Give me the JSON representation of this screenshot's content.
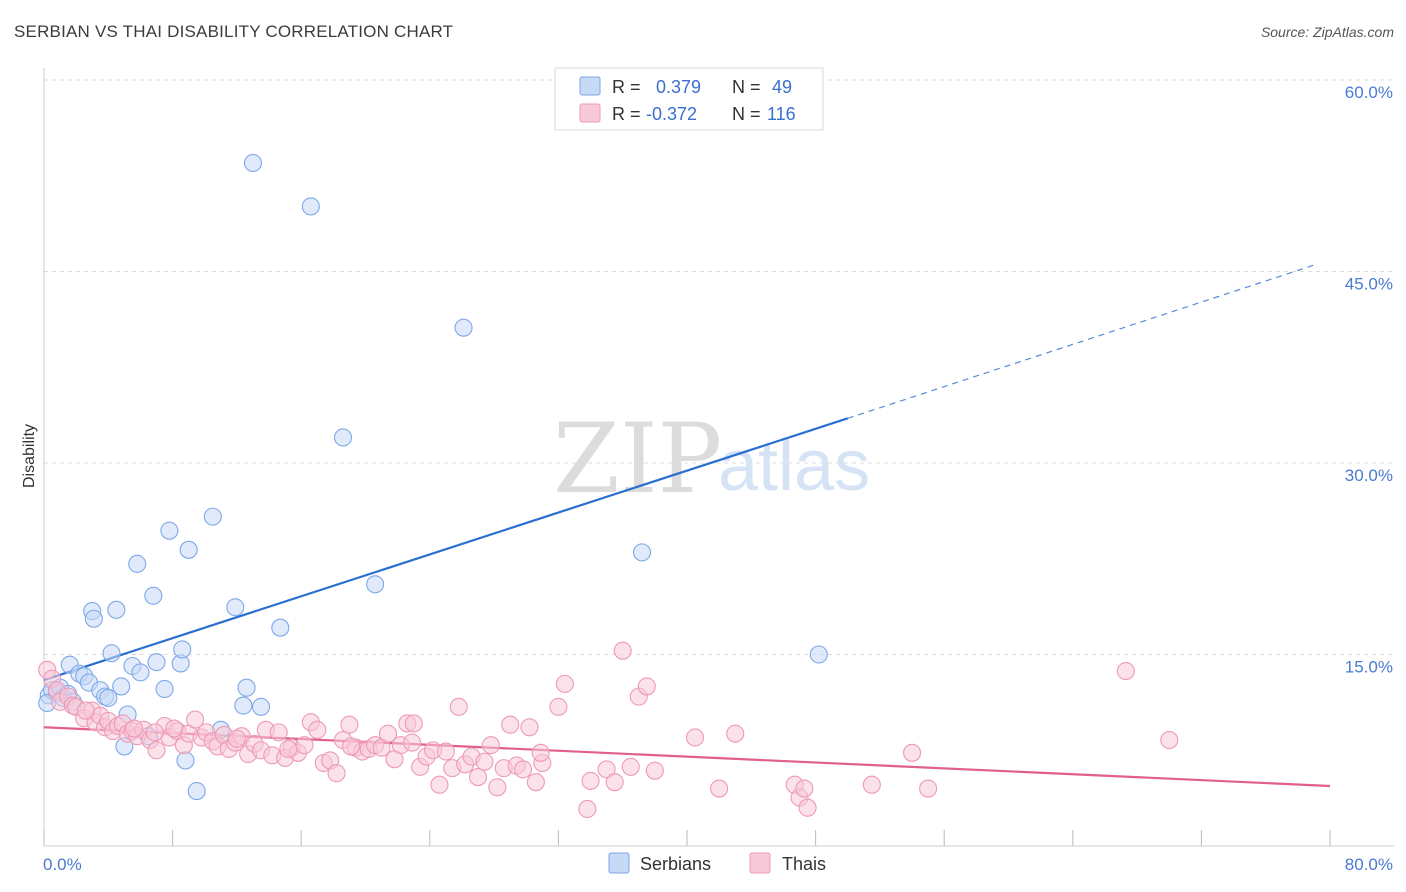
{
  "title": "SERBIAN VS THAI DISABILITY CORRELATION CHART",
  "source": "Source: ZipAtlas.com",
  "watermark": {
    "zip": "ZIP",
    "atlas": "atlas"
  },
  "colors": {
    "serbians": "#7fa8e8",
    "serbians_fill": "#c6d9f5",
    "serbians_line": "#2a6fd0",
    "thais": "#ee9ab5",
    "thais_fill": "#f8c9d8",
    "thais_line": "#e0608a",
    "tick_label": "#4a7bd0",
    "grid": "#dddddd"
  },
  "legend": {
    "position": "top-center",
    "rows": [
      {
        "r_label": "R =",
        "r_value": "0.379",
        "n_label": "N =",
        "n_value": "49"
      },
      {
        "r_label": "R =",
        "r_value": "-0.372",
        "n_label": "N =",
        "n_value": "116"
      }
    ]
  },
  "bottom_legend": [
    "Serbians",
    "Thais"
  ],
  "chart_data": {
    "type": "scatter",
    "xlabel": "",
    "ylabel": "Disability",
    "xlim": [
      0,
      80
    ],
    "ylim": [
      0,
      60
    ],
    "x_tick_labels": {
      "min": "0.0%",
      "max": "80.0%"
    },
    "y_ticks": [
      15,
      30,
      45,
      60
    ],
    "y_tick_labels": [
      "15.0%",
      "30.0%",
      "45.0%",
      "60.0%"
    ],
    "grid": true,
    "series": [
      {
        "name": "Serbians",
        "points": [
          [
            0.3,
            11.8
          ],
          [
            0.5,
            12.2
          ],
          [
            0.8,
            12.0
          ],
          [
            1.0,
            12.4
          ],
          [
            1.2,
            11.6
          ],
          [
            1.5,
            11.9
          ],
          [
            1.6,
            14.2
          ],
          [
            2.2,
            13.5
          ],
          [
            2.5,
            13.3
          ],
          [
            2.8,
            12.8
          ],
          [
            3.0,
            18.4
          ],
          [
            3.1,
            17.8
          ],
          [
            3.5,
            12.2
          ],
          [
            3.8,
            11.7
          ],
          [
            4.0,
            11.6
          ],
          [
            4.2,
            15.1
          ],
          [
            4.5,
            18.5
          ],
          [
            4.8,
            12.5
          ],
          [
            5.0,
            7.8
          ],
          [
            5.2,
            10.3
          ],
          [
            5.5,
            14.1
          ],
          [
            5.8,
            22.1
          ],
          [
            6.0,
            13.6
          ],
          [
            6.5,
            8.6
          ],
          [
            6.8,
            19.6
          ],
          [
            7.0,
            14.4
          ],
          [
            7.5,
            12.3
          ],
          [
            7.8,
            24.7
          ],
          [
            8.5,
            14.3
          ],
          [
            8.6,
            15.4
          ],
          [
            8.8,
            6.7
          ],
          [
            9.0,
            23.2
          ],
          [
            9.5,
            4.3
          ],
          [
            10.5,
            25.8
          ],
          [
            11.0,
            9.1
          ],
          [
            11.9,
            18.7
          ],
          [
            12.4,
            11.0
          ],
          [
            12.6,
            12.4
          ],
          [
            13.0,
            53.5
          ],
          [
            13.5,
            10.9
          ],
          [
            14.7,
            17.1
          ],
          [
            16.6,
            50.1
          ],
          [
            18.6,
            32.0
          ],
          [
            20.6,
            20.5
          ],
          [
            26.1,
            40.6
          ],
          [
            37.2,
            23.0
          ],
          [
            48.2,
            15.0
          ],
          [
            0.2,
            11.2
          ],
          [
            1.8,
            11.3
          ]
        ]
      },
      {
        "name": "Thais",
        "points": [
          [
            0.2,
            13.8
          ],
          [
            0.5,
            13.1
          ],
          [
            0.8,
            12.2
          ],
          [
            1.0,
            11.3
          ],
          [
            1.5,
            11.7
          ],
          [
            1.8,
            11.0
          ],
          [
            2.0,
            10.9
          ],
          [
            2.5,
            10.0
          ],
          [
            3.0,
            10.6
          ],
          [
            3.2,
            9.7
          ],
          [
            3.5,
            10.2
          ],
          [
            3.8,
            9.3
          ],
          [
            4.0,
            9.8
          ],
          [
            4.3,
            9.0
          ],
          [
            4.6,
            9.4
          ],
          [
            4.9,
            9.6
          ],
          [
            5.2,
            8.8
          ],
          [
            5.5,
            9.0
          ],
          [
            5.8,
            8.6
          ],
          [
            6.2,
            9.1
          ],
          [
            6.6,
            8.3
          ],
          [
            7.0,
            7.5
          ],
          [
            7.5,
            9.4
          ],
          [
            7.8,
            8.5
          ],
          [
            8.3,
            9.0
          ],
          [
            8.7,
            7.9
          ],
          [
            9.0,
            8.8
          ],
          [
            9.4,
            9.9
          ],
          [
            9.8,
            8.5
          ],
          [
            10.1,
            8.9
          ],
          [
            10.5,
            8.2
          ],
          [
            10.8,
            7.8
          ],
          [
            11.2,
            8.7
          ],
          [
            11.5,
            7.6
          ],
          [
            11.9,
            8.1
          ],
          [
            12.3,
            8.6
          ],
          [
            12.7,
            7.2
          ],
          [
            13.1,
            8.0
          ],
          [
            13.5,
            7.5
          ],
          [
            13.8,
            9.1
          ],
          [
            14.2,
            7.1
          ],
          [
            14.6,
            8.9
          ],
          [
            15.0,
            6.9
          ],
          [
            15.4,
            7.7
          ],
          [
            15.8,
            7.3
          ],
          [
            16.2,
            7.9
          ],
          [
            16.6,
            9.7
          ],
          [
            17.0,
            9.1
          ],
          [
            17.4,
            6.5
          ],
          [
            17.8,
            6.7
          ],
          [
            18.2,
            5.7
          ],
          [
            18.6,
            8.3
          ],
          [
            19.0,
            9.5
          ],
          [
            19.4,
            7.7
          ],
          [
            19.8,
            7.4
          ],
          [
            20.2,
            7.6
          ],
          [
            20.6,
            7.9
          ],
          [
            21.0,
            7.7
          ],
          [
            21.4,
            8.8
          ],
          [
            21.8,
            6.8
          ],
          [
            22.2,
            7.9
          ],
          [
            22.6,
            9.6
          ],
          [
            23.0,
            9.6
          ],
          [
            23.4,
            6.2
          ],
          [
            23.8,
            7.0
          ],
          [
            24.2,
            7.5
          ],
          [
            24.6,
            4.8
          ],
          [
            25.0,
            7.4
          ],
          [
            25.4,
            6.1
          ],
          [
            25.8,
            10.9
          ],
          [
            26.2,
            6.4
          ],
          [
            26.6,
            7.0
          ],
          [
            27.0,
            5.4
          ],
          [
            27.4,
            6.6
          ],
          [
            27.8,
            7.9
          ],
          [
            28.2,
            4.6
          ],
          [
            28.6,
            6.1
          ],
          [
            29.0,
            9.5
          ],
          [
            29.4,
            6.3
          ],
          [
            29.8,
            6.0
          ],
          [
            30.2,
            9.3
          ],
          [
            30.6,
            5.0
          ],
          [
            31.0,
            6.5
          ],
          [
            32.0,
            10.9
          ],
          [
            32.4,
            12.7
          ],
          [
            34.0,
            5.1
          ],
          [
            35.0,
            6.0
          ],
          [
            35.5,
            5.0
          ],
          [
            36.0,
            15.3
          ],
          [
            36.5,
            6.2
          ],
          [
            37.0,
            11.7
          ],
          [
            37.5,
            12.5
          ],
          [
            38.0,
            5.9
          ],
          [
            40.5,
            8.5
          ],
          [
            42.0,
            4.5
          ],
          [
            43.0,
            8.8
          ],
          [
            46.7,
            4.8
          ],
          [
            47.0,
            3.8
          ],
          [
            47.5,
            3.0
          ],
          [
            47.3,
            4.5
          ],
          [
            51.5,
            4.8
          ],
          [
            54.0,
            7.3
          ],
          [
            55.0,
            4.5
          ],
          [
            67.3,
            13.7
          ],
          [
            70.0,
            8.3
          ],
          [
            33.8,
            2.9
          ],
          [
            6.9,
            8.9
          ],
          [
            12.0,
            8.4
          ],
          [
            2.6,
            10.6
          ],
          [
            5.6,
            9.2
          ],
          [
            8.1,
            9.2
          ],
          [
            15.2,
            7.6
          ],
          [
            19.1,
            7.8
          ],
          [
            22.9,
            8.1
          ],
          [
            30.9,
            7.3
          ]
        ]
      }
    ],
    "trendlines": [
      {
        "series": "Serbians",
        "x0": 0,
        "y0": 13.0,
        "x1": 50,
        "y1": 33.5,
        "dashed_to_x": 79,
        "dashed_to_y": 45.5
      },
      {
        "series": "Thais",
        "x0": 0,
        "y0": 9.3,
        "x1": 80,
        "y1": 4.7
      }
    ]
  }
}
